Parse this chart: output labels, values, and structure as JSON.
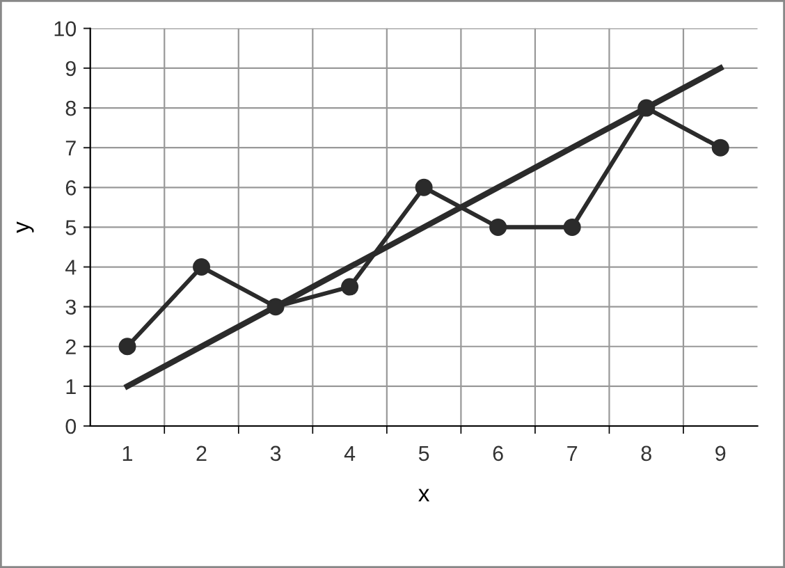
{
  "chart_data": {
    "type": "line",
    "xlabel": "x",
    "ylabel": "y",
    "categories": [
      "1",
      "2",
      "3",
      "4",
      "5",
      "6",
      "7",
      "8",
      "9"
    ],
    "series": [
      {
        "color": "#2b2b2b",
        "values": [
          2,
          4,
          3,
          3.5,
          6,
          5,
          5,
          8,
          7
        ],
        "marker": "circle",
        "line_style": "solid"
      },
      {
        "color": "#2b2b2b",
        "values": [
          1,
          2,
          3,
          4,
          5,
          6,
          7,
          8,
          9
        ],
        "marker": "none",
        "line_style": "solid"
      }
    ],
    "ylim": [
      0,
      10
    ],
    "yticks": [
      0,
      1,
      2,
      3,
      4,
      5,
      6,
      7,
      8,
      9,
      10
    ],
    "grid": true,
    "legend": false
  }
}
